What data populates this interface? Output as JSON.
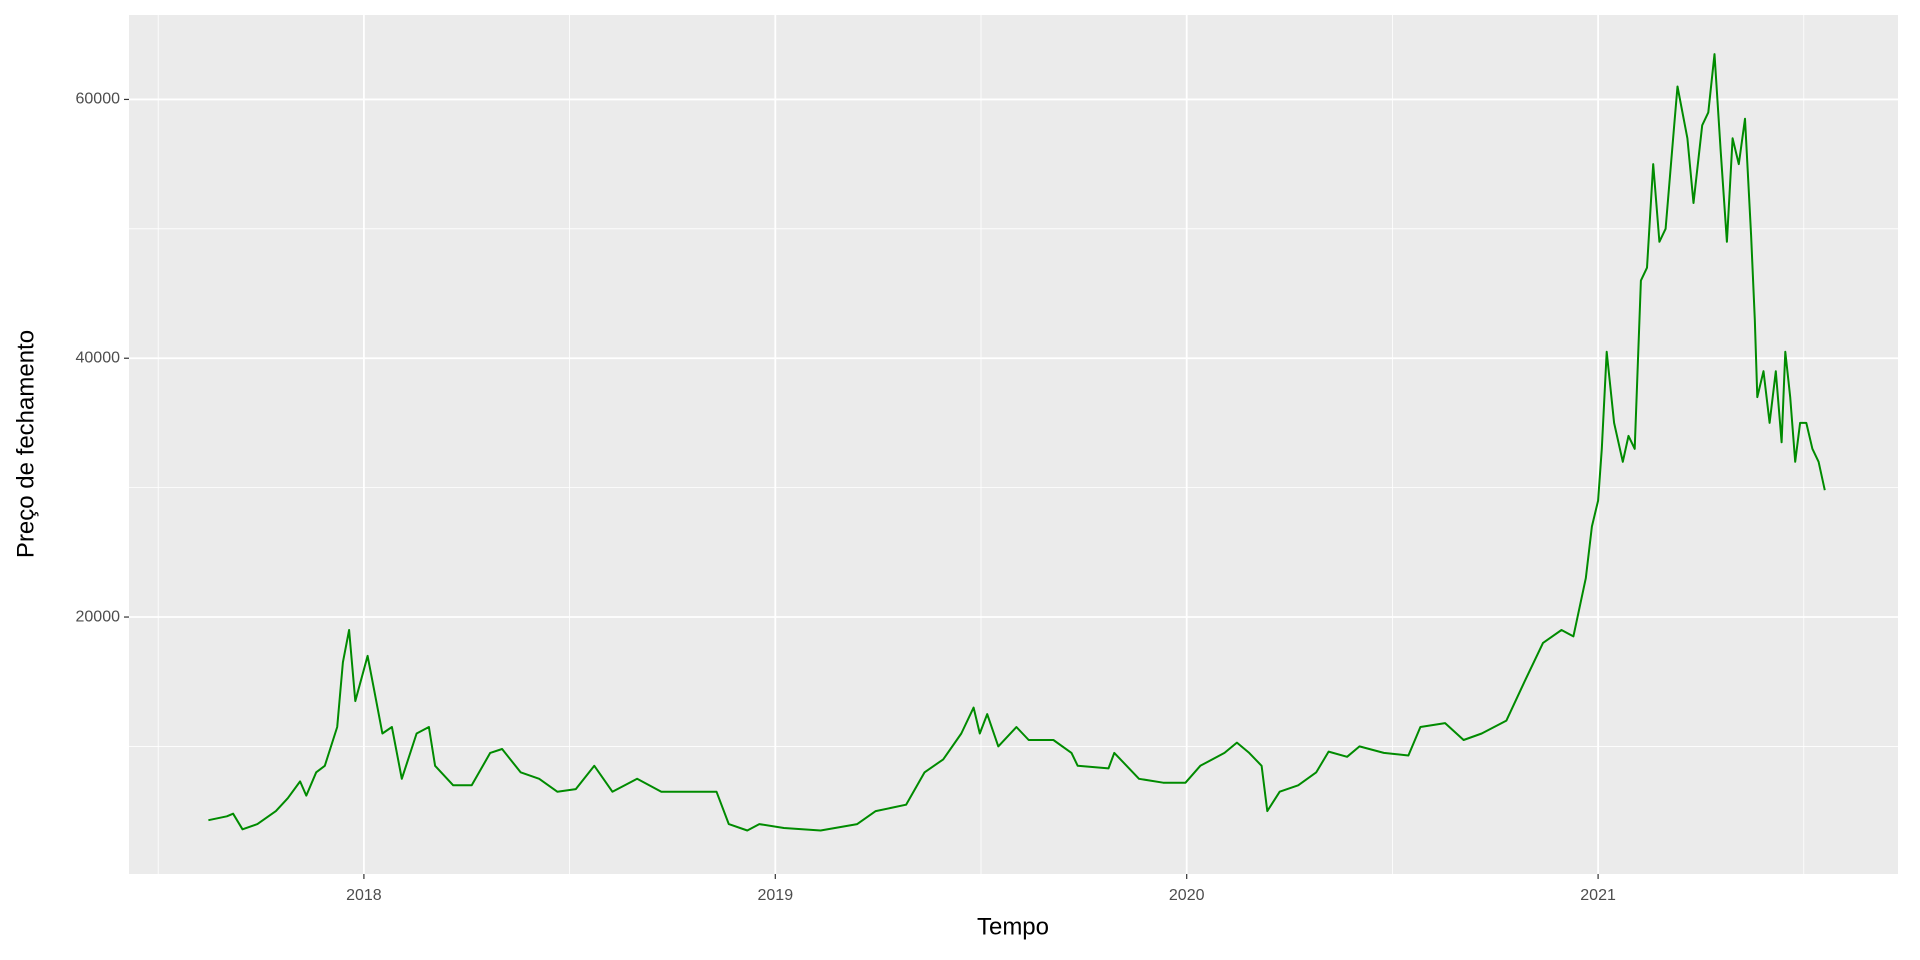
{
  "chart_data": {
    "type": "line",
    "x_label": "Tempo",
    "y_label": "Preço de fechamento",
    "xlim": [
      2017.429,
      2021.729
    ],
    "xticks": [
      2018,
      2019,
      2020,
      2021
    ],
    "x_minor_grid": [
      2017.5,
      2018.5,
      2019.5,
      2020.5,
      2021.5
    ],
    "ylim": [
      142,
      66525
    ],
    "yticks": [
      20000,
      40000,
      60000
    ],
    "y_minor_grid": [
      10000,
      30000,
      50000
    ],
    "grid": true,
    "series": [
      {
        "color": "#008b00",
        "x": [
          2017.622,
          2017.667,
          2017.682,
          2017.705,
          2017.741,
          2017.786,
          2017.815,
          2017.845,
          2017.86,
          2017.884,
          2017.905,
          2017.935,
          2017.949,
          2017.964,
          2017.979,
          2018.009,
          2018.024,
          2018.045,
          2018.068,
          2018.092,
          2018.128,
          2018.158,
          2018.173,
          2018.217,
          2018.262,
          2018.307,
          2018.336,
          2018.381,
          2018.426,
          2018.47,
          2018.515,
          2018.56,
          2018.604,
          2018.664,
          2018.723,
          2018.783,
          2018.857,
          2018.887,
          2018.932,
          2018.961,
          2019.021,
          2019.11,
          2019.199,
          2019.244,
          2019.318,
          2019.363,
          2019.408,
          2019.452,
          2019.482,
          2019.497,
          2019.515,
          2019.542,
          2019.586,
          2019.616,
          2019.676,
          2019.72,
          2019.735,
          2019.81,
          2019.824,
          2019.884,
          2019.943,
          2019.997,
          2020.033,
          2020.092,
          2020.122,
          2020.152,
          2020.182,
          2020.196,
          2020.226,
          2020.271,
          2020.315,
          2020.345,
          2020.39,
          2020.42,
          2020.479,
          2020.539,
          2020.568,
          2020.628,
          2020.673,
          2020.717,
          2020.777,
          2020.821,
          2020.866,
          2020.911,
          2020.94,
          2020.97,
          2020.985,
          2021.0,
          2021.009,
          2021.021,
          2021.039,
          2021.06,
          2021.074,
          2021.089,
          2021.104,
          2021.119,
          2021.134,
          2021.149,
          2021.164,
          2021.185,
          2021.193,
          2021.217,
          2021.232,
          2021.253,
          2021.268,
          2021.283,
          2021.298,
          2021.313,
          2021.327,
          2021.342,
          2021.357,
          2021.372,
          2021.381,
          2021.387,
          2021.402,
          2021.417,
          2021.432,
          2021.446,
          2021.455,
          2021.467,
          2021.479,
          2021.491,
          2021.506,
          2021.521,
          2021.536,
          2021.551
        ],
        "values": [
          4300,
          4600,
          4800,
          3600,
          4000,
          5000,
          6000,
          7300,
          6200,
          8000,
          8500,
          11500,
          16500,
          19000,
          13500,
          17000,
          14500,
          11000,
          11500,
          7500,
          11000,
          11500,
          8500,
          7000,
          7000,
          9500,
          9800,
          8000,
          7500,
          6500,
          6700,
          8500,
          6500,
          7500,
          6500,
          6500,
          6500,
          4000,
          3500,
          4000,
          3700,
          3500,
          4000,
          5000,
          5500,
          8000,
          9000,
          11000,
          13000,
          11000,
          12500,
          10000,
          11500,
          10500,
          10500,
          9500,
          8500,
          8300,
          9500,
          7500,
          7200,
          7200,
          8500,
          9500,
          10300,
          9500,
          8500,
          5000,
          6500,
          7000,
          8000,
          9600,
          9200,
          10000,
          9500,
          9300,
          11500,
          11800,
          10500,
          11000,
          12000,
          15000,
          18000,
          19000,
          18500,
          23000,
          27000,
          29000,
          33000,
          40500,
          35000,
          32000,
          34000,
          33000,
          46000,
          47000,
          55000,
          49000,
          50000,
          58000,
          61000,
          57000,
          52000,
          58000,
          59000,
          63500,
          56000,
          49000,
          57000,
          55000,
          58500,
          49500,
          43000,
          37000,
          39000,
          35000,
          39000,
          33500,
          40500,
          37000,
          32000,
          35000,
          35000,
          33000,
          32000,
          29800
        ]
      }
    ]
  }
}
